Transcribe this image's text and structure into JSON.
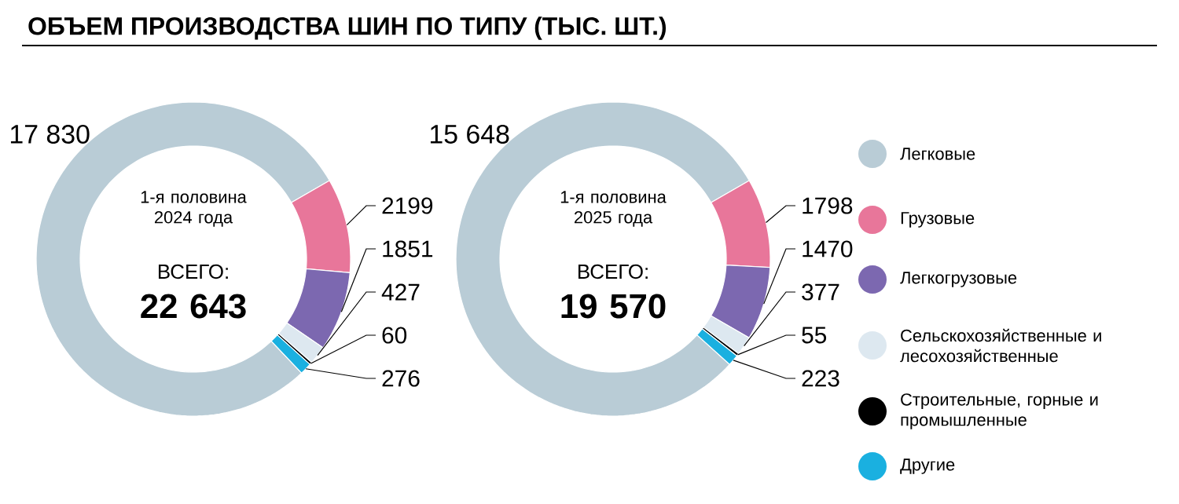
{
  "chart_data": [
    {
      "type": "donut",
      "title": "ОБЪЕМ ПРОИЗВОДСТВА ШИН ПО ТИПУ (ТЫС. ШТ.)",
      "categories": [
        "Легковые",
        "Грузовые",
        "Легкогрузовые",
        "Сельскохозяйственные и лесохозяйственные",
        "Строительные, горные и промышленные",
        "Другие"
      ],
      "values": [
        17830,
        2199,
        1851,
        427,
        60,
        276
      ],
      "value_labels": [
        "17 830",
        "2199",
        "1851",
        "427",
        "60",
        "276"
      ],
      "colors": [
        "#b9ccd6",
        "#e8769a",
        "#7c68b0",
        "#dde8f0",
        "#000000",
        "#1ab0e0"
      ],
      "annotations": [
        "1-я половина 2024 года",
        "ВСЕГО:",
        "22 643"
      ],
      "legend": "right"
    },
    {
      "type": "donut",
      "categories": [
        null,
        null,
        null,
        null,
        null,
        null
      ],
      "values": [
        15648,
        1798,
        1470,
        377,
        55,
        223
      ],
      "value_labels": [
        "15 648",
        "1798",
        "1470",
        "377",
        "55",
        "223"
      ],
      "colors": [
        "#b9ccd6",
        "#e8769a",
        "#7c68b0",
        "#dde8f0",
        "#000000",
        "#1ab0e0"
      ],
      "annotations": [
        "1-я половина 2025 года",
        "ВСЕГО:",
        "19 570"
      ]
    }
  ]
}
